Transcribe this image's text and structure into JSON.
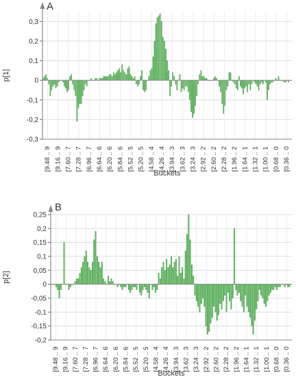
{
  "chart_data": [
    {
      "panel_label": "A",
      "type": "bar",
      "ylabel": "p[1]",
      "xlabel": "Buckets",
      "ylim": [
        -0.3,
        0.35
      ],
      "yticks": [
        -0.3,
        -0.2,
        -0.1,
        0,
        0.1,
        0.2,
        0.3
      ],
      "ytick_labels": [
        "-0,3",
        "-0,2",
        "-0,1",
        "0",
        "0,1",
        "0,2",
        "0,3"
      ],
      "xtick_labels": [
        "[9.48 .. 9",
        "[9.16 .. 9",
        "[7.60 .. 7",
        "[7.28 .. 7",
        "[6.96 .. 7",
        "[6.64 .. 6",
        "[6.20 .. 6",
        "[5.84 .. 6",
        "[5.52 .. 5",
        "[5.20 .. 5",
        "[4.58 .. 4",
        "[4.26 .. 4",
        "[3.94 .. 3",
        "[3.62 .. 3",
        "[3.24 .. 3",
        "[2.92 .. 2",
        "[2.60 .. 2",
        "[2.28 .. 2",
        "[1.96 .. 2",
        "[1.64 .. 1",
        "[1.32 .. 1",
        "[1.00 .. 1",
        "[0.68 .. 0",
        "[0.36 .. 0"
      ],
      "grid": true,
      "bar_color": "#5cb85c",
      "values": [
        0.01,
        0.02,
        0.03,
        0.01,
        -0.02,
        -0.08,
        -0.05,
        -0.03,
        -0.02,
        -0.04,
        -0.03,
        -0.01,
        0.0,
        0.0,
        -0.01,
        -0.03,
        -0.04,
        -0.06,
        -0.05,
        0.02,
        0.03,
        -0.02,
        -0.05,
        -0.08,
        -0.21,
        -0.14,
        -0.12,
        -0.12,
        -0.08,
        -0.05,
        -0.02,
        -0.03,
        0.0,
        0.0,
        0.01,
        0.0,
        0.0,
        0.01,
        0.01,
        0.0,
        0.01,
        0.01,
        0.01,
        0.02,
        0.02,
        0.02,
        0.02,
        0.03,
        0.03,
        0.02,
        0.04,
        0.03,
        0.04,
        0.05,
        0.06,
        0.04,
        0.08,
        0.05,
        0.04,
        0.03,
        0.06,
        0.07,
        0.03,
        0.02,
        0.01,
        0.02,
        -0.02,
        -0.03,
        -0.02,
        0.02,
        0.05,
        -0.05,
        -0.06,
        -0.05,
        0.0,
        0.02,
        0.05,
        0.06,
        0.12,
        0.2,
        0.29,
        0.32,
        0.33,
        0.34,
        0.3,
        0.22,
        0.2,
        0.16,
        0.1,
        0.05,
        -0.08,
        -0.03,
        0.04,
        0.02,
        -0.02,
        -0.05,
        0.0,
        0.03,
        -0.06,
        -0.04,
        -0.05,
        -0.03,
        -0.03,
        -0.06,
        -0.1,
        -0.16,
        -0.19,
        -0.17,
        -0.13,
        -0.08,
        -0.02,
        0.03,
        0.05,
        0.02,
        0.02,
        0.01,
        0.01,
        0.0,
        0.0,
        0.0,
        0.0,
        0.01,
        0.02,
        0.01,
        0.0,
        -0.03,
        -0.06,
        -0.12,
        -0.17,
        -0.13,
        -0.05,
        -0.03,
        0.04,
        0.04,
        0.0,
        -0.01,
        -0.02,
        -0.04,
        -0.05,
        0.02,
        -0.03,
        -0.04,
        -0.07,
        -0.04,
        -0.03,
        -0.06,
        -0.02,
        -0.05,
        -0.02,
        0.0,
        -0.01,
        -0.02,
        -0.03,
        -0.05,
        -0.02,
        -0.01,
        -0.02,
        0.0,
        -0.01,
        -0.1,
        -0.05,
        -0.02,
        -0.01,
        -0.01,
        0.0,
        0.01,
        0.0,
        0.02,
        0.0,
        0.0,
        0.0,
        -0.01,
        -0.01,
        0.0,
        -0.01,
        0.0,
        0.0
      ]
    },
    {
      "panel_label": "B",
      "type": "bar",
      "ylabel": "p[2]",
      "xlabel": "Buckets",
      "ylim": [
        -0.2,
        0.25
      ],
      "yticks": [
        -0.2,
        -0.15,
        -0.1,
        -0.05,
        0,
        0.05,
        0.1,
        0.15,
        0.2,
        0.25
      ],
      "ytick_labels": [
        "-0,2",
        "-0,15",
        "-0,1",
        "-0,05",
        "0",
        "0,05",
        "0,1",
        "0,15",
        "0,2",
        "0,25"
      ],
      "xtick_labels": [
        "[9.48 .. 9",
        "[9.16 .. 9",
        "[7.60 .. 7",
        "[7.28 .. 7",
        "[6.96 .. 7",
        "[6.64 .. 6",
        "[6.20 .. 6",
        "[5.84 .. 6",
        "[5.52 .. 5",
        "[5.20 .. 5",
        "[4.58 .. 4",
        "[4.26 .. 4",
        "[3.94 .. 3",
        "[3.62 .. 3",
        "[3.24 .. 3",
        "[2.92 .. 2",
        "[2.60 .. 2",
        "[2.28 .. 2",
        "[1.96 .. 2",
        "[1.64 .. 1",
        "[1.32 .. 1",
        "[1.00 .. 1",
        "[0.68 .. 0",
        "[0.36 .. 0"
      ],
      "grid": true,
      "bar_color": "#5cb85c",
      "values": [
        0.0,
        0.0,
        0.0,
        -0.01,
        -0.02,
        -0.05,
        -0.02,
        0.0,
        0.15,
        0.0,
        0.0,
        -0.02,
        -0.01,
        0.0,
        0.0,
        0.01,
        0.02,
        0.02,
        0.04,
        0.06,
        0.08,
        0.1,
        0.12,
        0.08,
        0.06,
        0.05,
        0.08,
        0.16,
        0.19,
        0.1,
        0.08,
        0.06,
        0.08,
        0.02,
        0.01,
        0.0,
        0.03,
        0.01,
        0.02,
        0.01,
        0.0,
        0.0,
        -0.01,
        0.0,
        -0.01,
        -0.02,
        -0.01,
        -0.01,
        0.0,
        -0.02,
        -0.03,
        -0.02,
        -0.01,
        -0.01,
        -0.02,
        0.0,
        -0.03,
        -0.04,
        -0.02,
        -0.01,
        -0.02,
        -0.03,
        -0.05,
        0.0,
        -0.02,
        -0.01,
        -0.03,
        -0.02,
        0.04,
        0.02,
        0.06,
        0.08,
        0.05,
        0.09,
        0.06,
        0.07,
        0.1,
        0.06,
        0.08,
        0.09,
        0.03,
        0.1,
        0.04,
        0.06,
        0.02,
        0.12,
        0.18,
        0.25,
        0.16,
        0.07,
        0.03,
        -0.04,
        -0.06,
        -0.08,
        -0.1,
        -0.07,
        -0.05,
        -0.08,
        -0.15,
        -0.18,
        -0.17,
        -0.14,
        -0.12,
        -0.08,
        -0.1,
        -0.13,
        -0.11,
        -0.07,
        -0.09,
        -0.06,
        -0.04,
        -0.1,
        -0.03,
        -0.06,
        -0.09,
        -0.05,
        0.2,
        -0.02,
        -0.04,
        -0.03,
        -0.06,
        -0.08,
        -0.1,
        -0.04,
        -0.08,
        -0.1,
        -0.12,
        -0.15,
        -0.18,
        -0.13,
        -0.09,
        -0.06,
        -0.02,
        -0.04,
        -0.05,
        -0.07,
        -0.08,
        -0.06,
        -0.04,
        -0.03,
        -0.02,
        -0.02,
        -0.01,
        -0.02,
        -0.01,
        -0.01,
        0.0,
        0.0,
        -0.01,
        0.0,
        -0.01,
        -0.01,
        0.0
      ]
    }
  ]
}
